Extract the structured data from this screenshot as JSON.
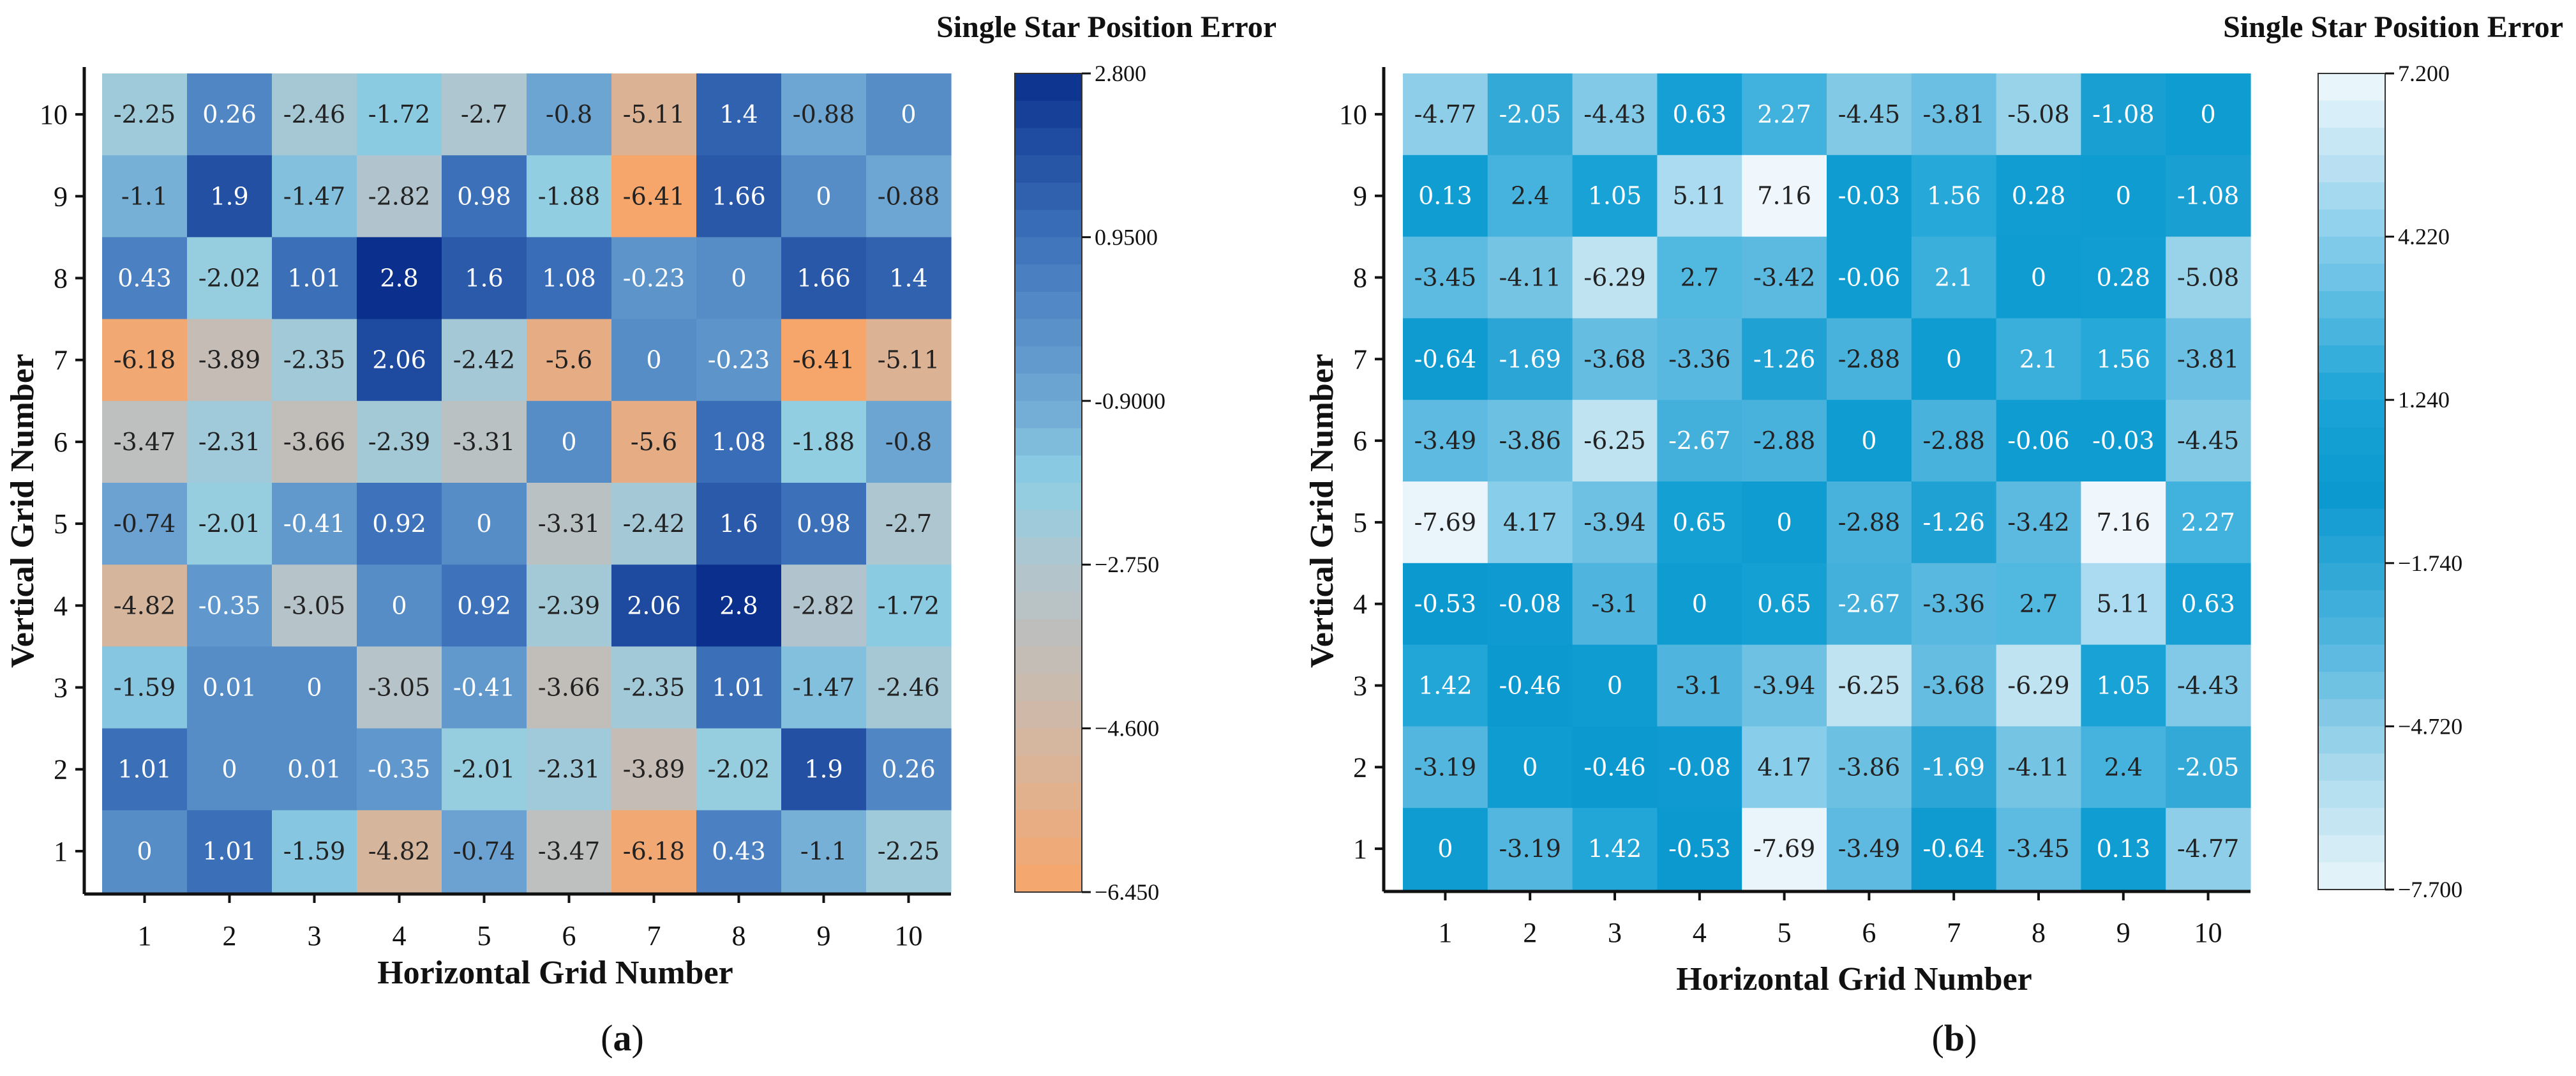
{
  "chart_data": [
    {
      "type": "heatmap",
      "panel_label": "a",
      "title": "Single Star Position Error",
      "xlabel": "Horizontal Grid Number",
      "ylabel": "Vertical Grid Number",
      "x_ticks": [
        "1",
        "2",
        "3",
        "4",
        "5",
        "6",
        "7",
        "8",
        "9",
        "10"
      ],
      "y_ticks": [
        "1",
        "2",
        "3",
        "4",
        "5",
        "6",
        "7",
        "8",
        "9",
        "10"
      ],
      "rows_top_to_bottom": [
        {
          "row": "10",
          "values": [
            -2.25,
            0.26,
            -2.46,
            -1.72,
            -2.7,
            -0.8,
            -5.11,
            1.4,
            -0.88,
            0
          ]
        },
        {
          "row": "9",
          "values": [
            -1.1,
            1.9,
            -1.47,
            -2.82,
            0.98,
            -1.88,
            -6.41,
            1.66,
            0,
            -0.88
          ]
        },
        {
          "row": "8",
          "values": [
            0.43,
            -2.02,
            1.01,
            2.8,
            1.6,
            1.08,
            -0.23,
            0,
            1.66,
            1.4
          ]
        },
        {
          "row": "7",
          "values": [
            -6.18,
            -3.89,
            -2.35,
            2.06,
            -2.42,
            -5.6,
            0,
            -0.23,
            -6.41,
            -5.11
          ]
        },
        {
          "row": "6",
          "values": [
            -3.47,
            -2.31,
            -3.66,
            -2.39,
            -3.31,
            0,
            -5.6,
            1.08,
            -1.88,
            -0.8
          ]
        },
        {
          "row": "5",
          "values": [
            -0.74,
            -2.01,
            -0.41,
            0.92,
            0,
            -3.31,
            -2.42,
            1.6,
            0.98,
            -2.7
          ]
        },
        {
          "row": "4",
          "values": [
            -4.82,
            -0.35,
            -3.05,
            0,
            0.92,
            -2.39,
            2.06,
            2.8,
            -2.82,
            -1.72
          ]
        },
        {
          "row": "3",
          "values": [
            -1.59,
            0.01,
            0,
            -3.05,
            -0.41,
            -3.66,
            -2.35,
            1.01,
            -1.47,
            -2.46
          ]
        },
        {
          "row": "2",
          "values": [
            1.01,
            0,
            0.01,
            -0.35,
            -2.01,
            -2.31,
            -3.89,
            -2.02,
            1.9,
            0.26
          ]
        },
        {
          "row": "1",
          "values": [
            0,
            1.01,
            -1.59,
            -4.82,
            -0.74,
            -3.47,
            -6.18,
            0.43,
            -1.1,
            -2.25
          ]
        }
      ],
      "colorbar": {
        "min": -6.45,
        "max": 2.8,
        "ticks": [
          {
            "value": 2.8,
            "label": "2.800"
          },
          {
            "value": 0.95,
            "label": "0.9500"
          },
          {
            "value": -0.9,
            "label": "-0.9000"
          },
          {
            "value": -2.75,
            "label": "−2.750"
          },
          {
            "value": -4.6,
            "label": "−4.600"
          },
          {
            "value": -6.45,
            "label": "−6.450"
          }
        ],
        "stops": [
          {
            "value": -6.45,
            "color": "#f7a56a"
          },
          {
            "value": -4.6,
            "color": "#d2b7a4"
          },
          {
            "value": -2.75,
            "color": "#b0c5cf"
          },
          {
            "value": -1.8,
            "color": "#8ecfe4"
          },
          {
            "value": -0.9,
            "color": "#6fa7d3"
          },
          {
            "value": 0.95,
            "color": "#3d72bb"
          },
          {
            "value": 2.8,
            "color": "#0a2f8c"
          }
        ],
        "steps": 30
      }
    },
    {
      "type": "heatmap",
      "panel_label": "b",
      "title": "Single Star Position Error",
      "xlabel": "Horizontal Grid Number",
      "ylabel": "Vertical Grid Number",
      "x_ticks": [
        "1",
        "2",
        "3",
        "4",
        "5",
        "6",
        "7",
        "8",
        "9",
        "10"
      ],
      "y_ticks": [
        "1",
        "2",
        "3",
        "4",
        "5",
        "6",
        "7",
        "8",
        "9",
        "10"
      ],
      "rows_top_to_bottom": [
        {
          "row": "10",
          "values": [
            -4.77,
            -2.05,
            -4.43,
            0.63,
            2.27,
            -4.45,
            -3.81,
            -5.08,
            -1.08,
            0
          ]
        },
        {
          "row": "9",
          "values": [
            0.13,
            2.4,
            1.05,
            5.11,
            7.16,
            -0.03,
            1.56,
            0.28,
            0,
            -1.08
          ]
        },
        {
          "row": "8",
          "values": [
            -3.45,
            -4.11,
            -6.29,
            2.7,
            -3.42,
            -0.06,
            2.1,
            0,
            0.28,
            -5.08
          ]
        },
        {
          "row": "7",
          "values": [
            -0.64,
            -1.69,
            -3.68,
            -3.36,
            -1.26,
            -2.88,
            0,
            2.1,
            1.56,
            -3.81
          ]
        },
        {
          "row": "6",
          "values": [
            -3.49,
            -3.86,
            -6.25,
            -2.67,
            -2.88,
            0,
            -2.88,
            -0.06,
            -0.03,
            -4.45
          ]
        },
        {
          "row": "5",
          "values": [
            -7.69,
            4.17,
            -3.94,
            0.65,
            0,
            -2.88,
            -1.26,
            -3.42,
            7.16,
            2.27
          ]
        },
        {
          "row": "4",
          "values": [
            -0.53,
            -0.08,
            -3.1,
            0,
            0.65,
            -2.67,
            -3.36,
            2.7,
            5.11,
            0.63
          ]
        },
        {
          "row": "3",
          "values": [
            1.42,
            -0.46,
            0,
            -3.1,
            -3.94,
            -6.25,
            -3.68,
            -6.29,
            1.05,
            -4.43
          ]
        },
        {
          "row": "2",
          "values": [
            -3.19,
            0,
            -0.46,
            -0.08,
            4.17,
            -3.86,
            -1.69,
            -4.11,
            2.4,
            -2.05
          ]
        },
        {
          "row": "1",
          "values": [
            0,
            -3.19,
            1.42,
            -0.53,
            -7.69,
            -3.49,
            -0.64,
            -3.45,
            0.13,
            -4.77
          ]
        }
      ],
      "colorbar": {
        "min": -7.7,
        "max": 7.2,
        "ticks": [
          {
            "value": 7.2,
            "label": "7.200"
          },
          {
            "value": 4.22,
            "label": "4.220"
          },
          {
            "value": 1.24,
            "label": "1.240"
          },
          {
            "value": -1.74,
            "label": "−1.740"
          },
          {
            "value": -4.72,
            "label": "−4.720"
          },
          {
            "value": -7.7,
            "label": "−7.700"
          }
        ],
        "stops": [
          {
            "value": -7.7,
            "color": "#e9f5fb"
          },
          {
            "value": -5.5,
            "color": "#a9d9ec"
          },
          {
            "value": -3.0,
            "color": "#4cb3dd"
          },
          {
            "value": -0.5,
            "color": "#0b99cf"
          },
          {
            "value": 1.24,
            "color": "#1aa3d6"
          },
          {
            "value": 3.5,
            "color": "#6fc3e6"
          },
          {
            "value": 5.5,
            "color": "#b9e1f2"
          },
          {
            "value": 7.2,
            "color": "#f0f8fd"
          }
        ],
        "steps": 30
      }
    }
  ]
}
